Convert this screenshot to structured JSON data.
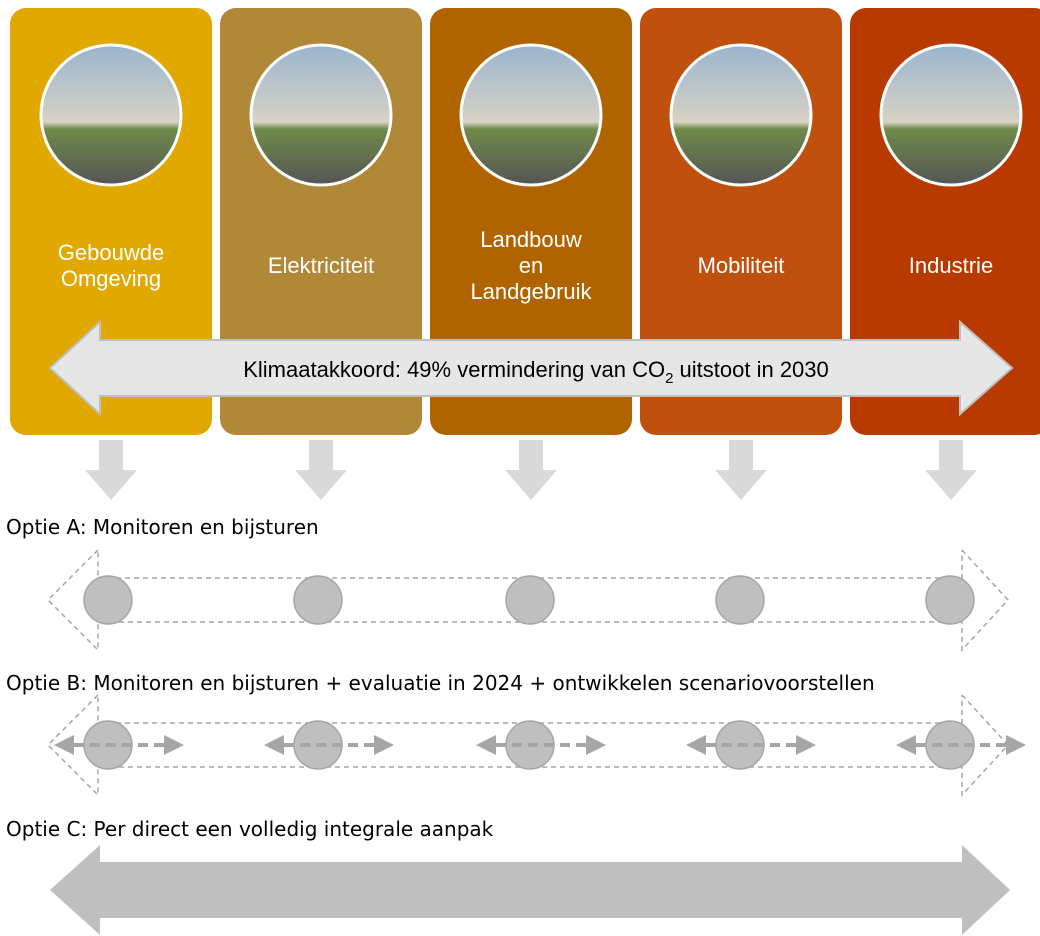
{
  "columns": [
    {
      "label": [
        "Gebouwde",
        "Omgeving"
      ],
      "color": "#e0a800"
    },
    {
      "label": [
        "Elektriciteit"
      ],
      "color": "#b08838"
    },
    {
      "label": [
        "Landbouw",
        "en",
        "Landgebruik"
      ],
      "color": "#b06400"
    },
    {
      "label": [
        "Mobiliteit"
      ],
      "color": "#c0500e"
    },
    {
      "label": [
        "Industrie"
      ],
      "color": "#b83a00"
    }
  ],
  "banner": {
    "before": "Klimaatakkoord: 49% vermindering van CO",
    "sub": "2",
    "after": " uitstoot in 2030"
  },
  "options": [
    {
      "text": "Optie A: Monitoren en bijsturen"
    },
    {
      "text": "Optie B: Monitoren en bijsturen + evaluatie in 2024 + ontwikkelen scenariovoorstellen"
    },
    {
      "text": "Optie C: Per direct een volledig integrale aanpak"
    }
  ]
}
